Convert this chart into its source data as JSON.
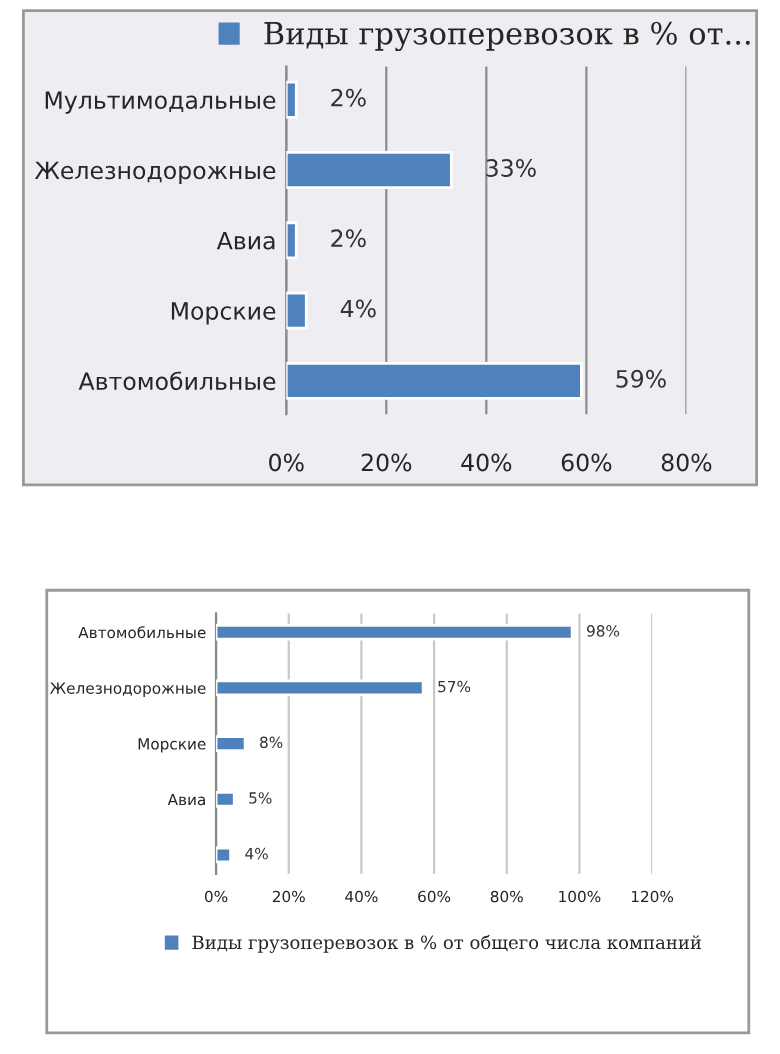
{
  "chart_data": [
    {
      "type": "bar",
      "orientation": "horizontal",
      "categories": [
        "Мультимодальные",
        "Железнодорожные",
        "Авиа",
        "Морские",
        "Автомобильные"
      ],
      "series": [
        {
          "name": "Виды грузоперевозок в % от...",
          "color": "#4f81bd",
          "values": [
            2,
            33,
            2,
            4,
            59
          ],
          "value_labels": [
            "2%",
            "33%",
            "2%",
            "4%",
            "59%"
          ]
        }
      ],
      "xlim": [
        0,
        80
      ],
      "xticks": [
        {
          "value": 0,
          "label": "0%"
        },
        {
          "value": 20,
          "label": "20%"
        },
        {
          "value": 40,
          "label": "40%"
        },
        {
          "value": 60,
          "label": "60%"
        },
        {
          "value": 80,
          "label": "80%"
        }
      ],
      "grid": "x",
      "legend": "top"
    },
    {
      "type": "bar",
      "orientation": "horizontal",
      "categories": [
        "Автомобильные",
        "Железнодорожные",
        "Морские",
        "Авиа",
        null
      ],
      "series": [
        {
          "name": "Виды грузоперевозок в % от общего числа компаний",
          "color": "#4f81bd",
          "values": [
            98,
            57,
            8,
            5,
            4
          ],
          "value_labels": [
            "98%",
            "57%",
            "8%",
            "5%",
            "4%"
          ]
        }
      ],
      "xlim": [
        0,
        120
      ],
      "xticks": [
        {
          "value": 0,
          "label": "0%"
        },
        {
          "value": 20,
          "label": "20%"
        },
        {
          "value": 40,
          "label": "40%"
        },
        {
          "value": 60,
          "label": "60%"
        },
        {
          "value": 80,
          "label": "80%"
        },
        {
          "value": 100,
          "label": "100%"
        },
        {
          "value": 120,
          "label": "120%"
        }
      ],
      "grid": "x",
      "legend": "bottom"
    }
  ]
}
